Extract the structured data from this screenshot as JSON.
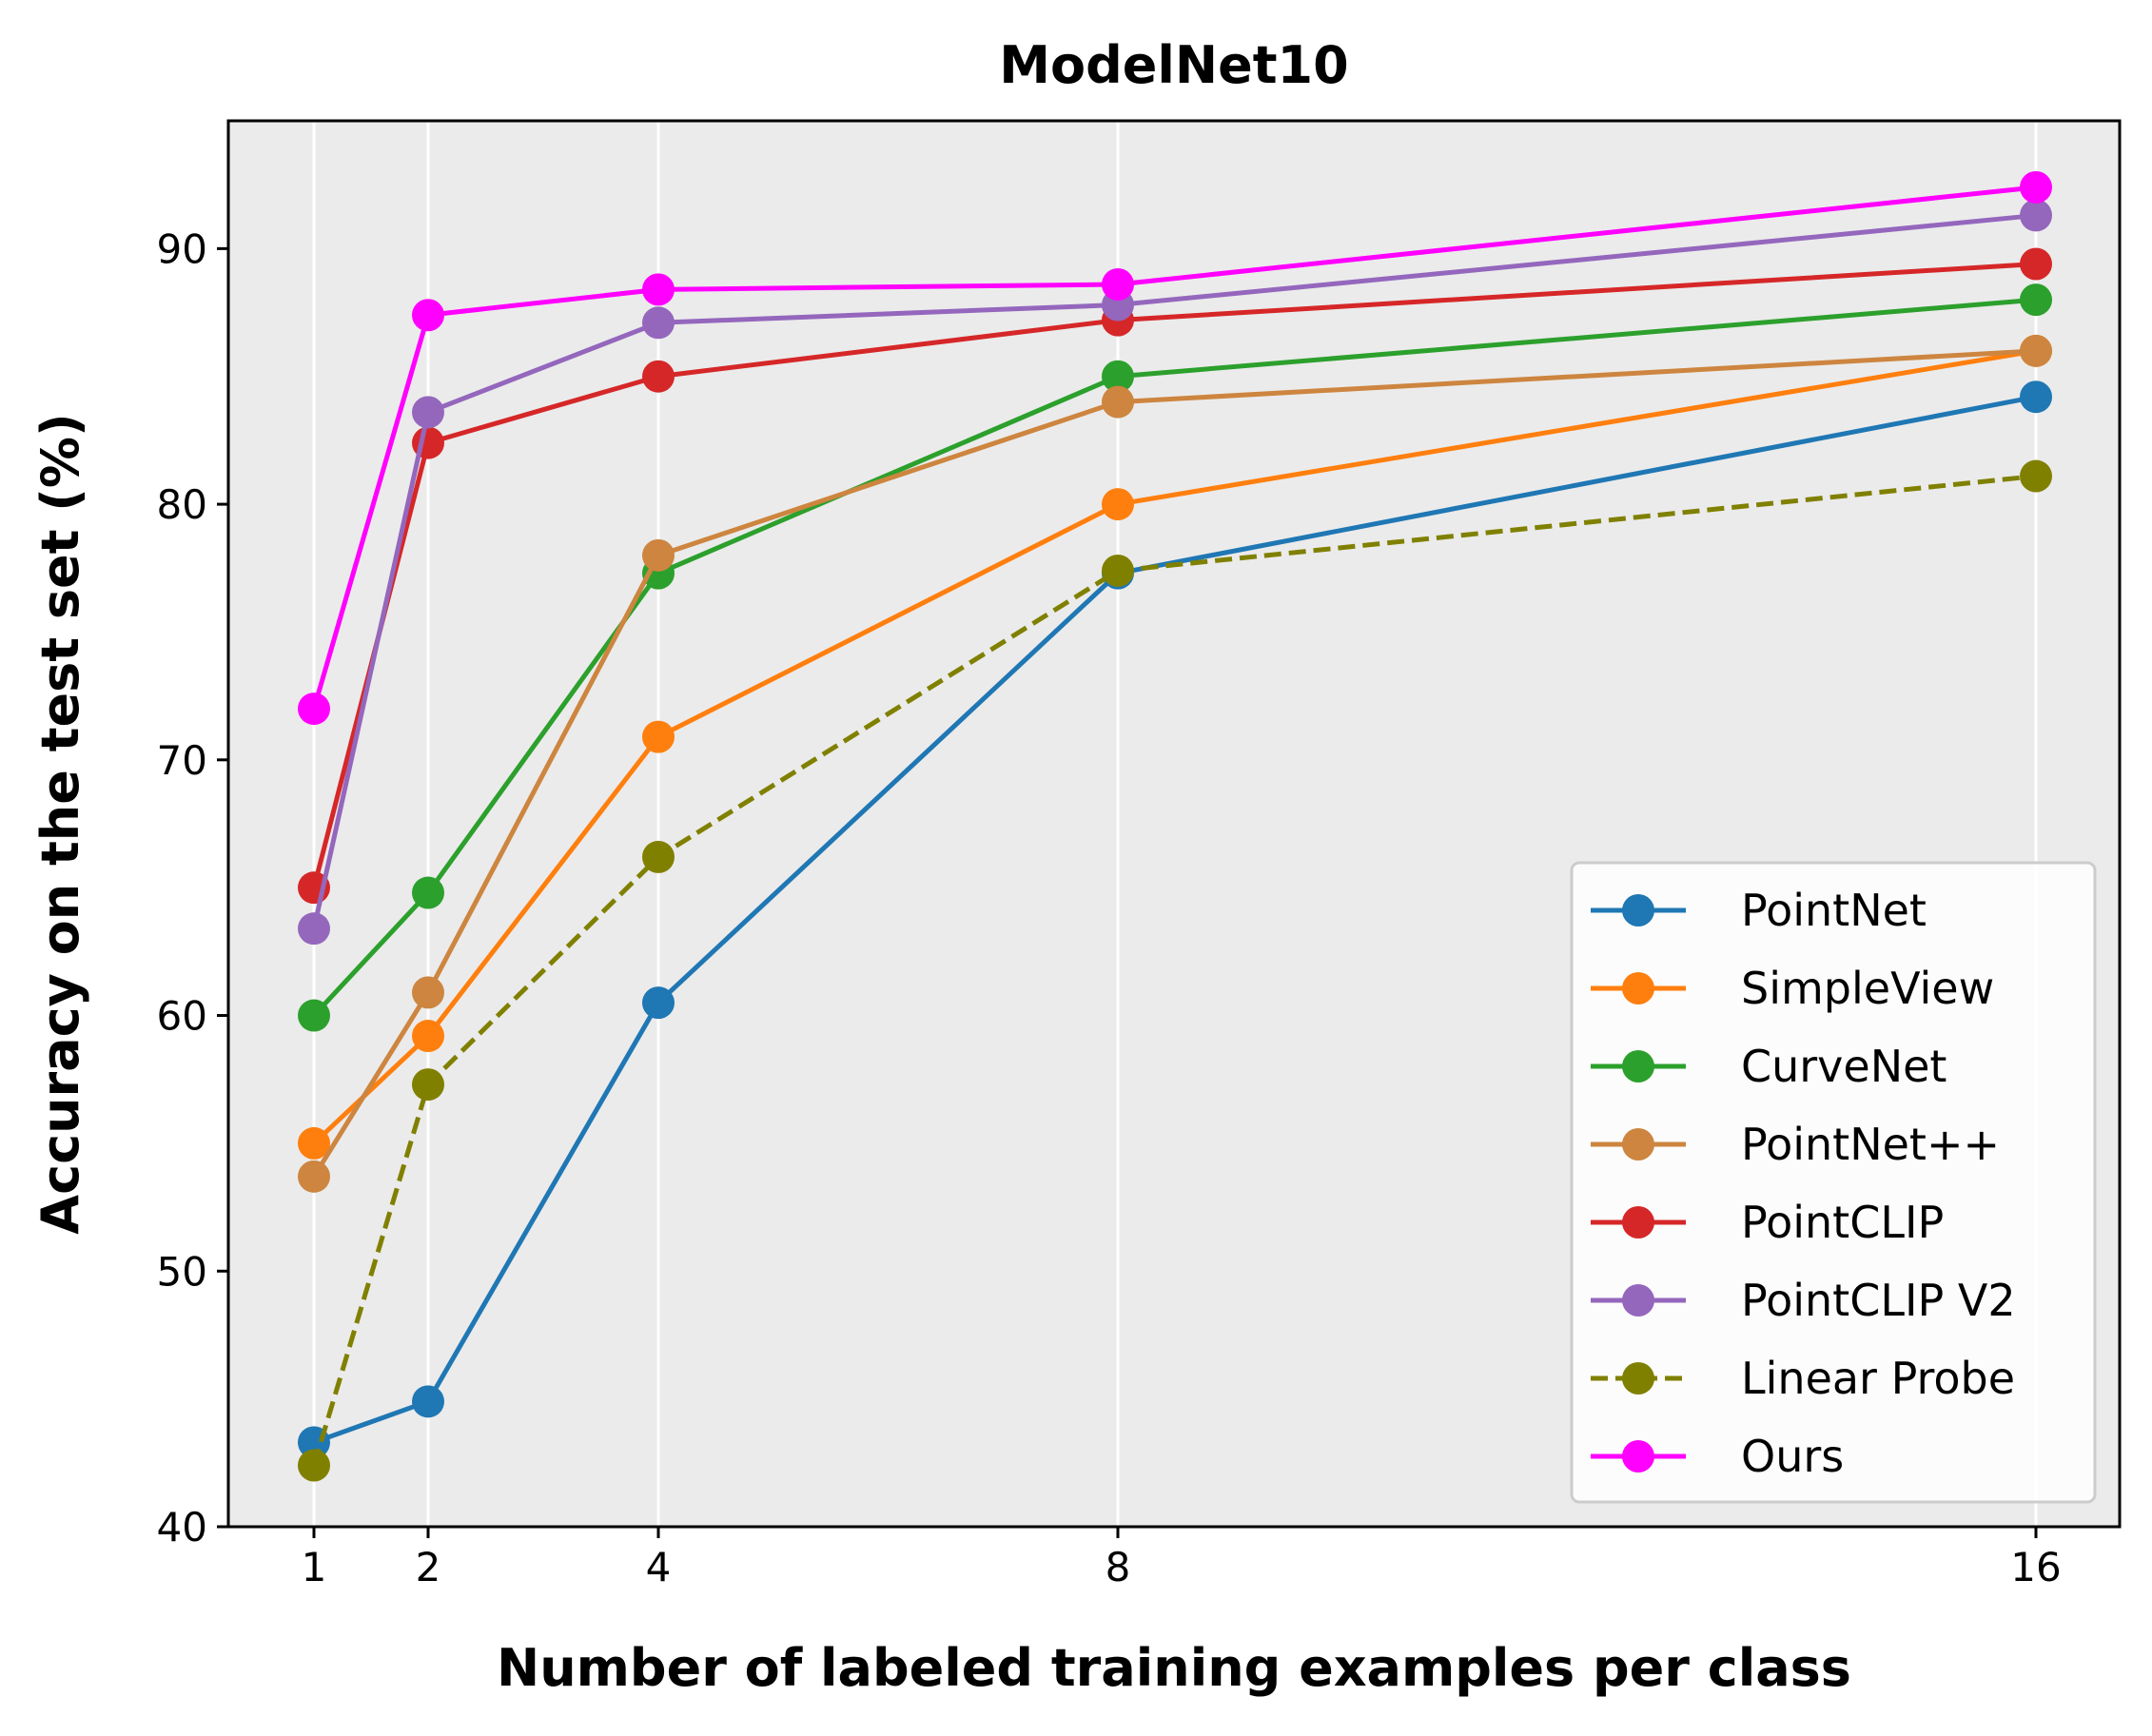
{
  "chart_data": {
    "type": "line",
    "title": "ModelNet10",
    "xlabel": "Number of labeled training examples per class",
    "ylabel": "Accuracy on the test set (%)",
    "x": [
      1,
      2,
      4,
      8,
      16
    ],
    "x_tick_labels": [
      "1",
      "2",
      "4",
      "8",
      "16"
    ],
    "y_ticks": [
      40,
      50,
      60,
      70,
      80,
      90
    ],
    "y_tick_labels": [
      "40",
      "50",
      "60",
      "70",
      "80",
      "90"
    ],
    "ylim": [
      40,
      95
    ],
    "grid": "vertical",
    "legend_position": "lower-right",
    "series": [
      {
        "name": "PointNet",
        "color": "#1f77b4",
        "dashed": false,
        "values": [
          43.3,
          44.9,
          60.5,
          77.3,
          84.2
        ]
      },
      {
        "name": "SimpleView",
        "color": "#ff7f0e",
        "dashed": false,
        "values": [
          55.0,
          59.2,
          70.9,
          80.0,
          86.0
        ]
      },
      {
        "name": "CurveNet",
        "color": "#2ca02c",
        "dashed": false,
        "values": [
          60.0,
          64.8,
          77.3,
          85.0,
          88.0
        ]
      },
      {
        "name": "PointNet++",
        "color": "#cd853f",
        "dashed": false,
        "values": [
          53.7,
          60.9,
          78.0,
          84.0,
          86.0
        ]
      },
      {
        "name": "PointCLIP",
        "color": "#d62728",
        "dashed": false,
        "values": [
          65.0,
          82.4,
          85.0,
          87.2,
          89.4
        ]
      },
      {
        "name": "PointCLIP V2",
        "color": "#9467bd",
        "dashed": false,
        "values": [
          63.4,
          83.6,
          87.1,
          87.8,
          91.3
        ]
      },
      {
        "name": "Linear Probe",
        "color": "#808000",
        "dashed": true,
        "values": [
          42.4,
          57.3,
          66.2,
          77.4,
          81.1
        ]
      },
      {
        "name": "Ours",
        "color": "#ff00ff",
        "dashed": false,
        "values": [
          72.0,
          87.4,
          88.4,
          88.6,
          92.4
        ]
      }
    ]
  }
}
